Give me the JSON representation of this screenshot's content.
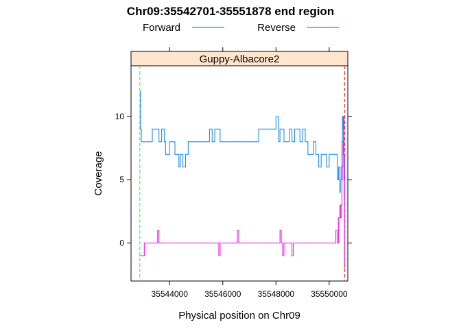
{
  "chart_data": {
    "type": "line",
    "title": "Chr09:35542701-35551878 end region",
    "xlabel": "Physical position on Chr09",
    "ylabel": "Coverage",
    "panel_label": "Guppy-Albacore2",
    "xlim": [
      35542550,
      35550700
    ],
    "ylim": [
      -3,
      14
    ],
    "x_ticks": [
      35544000,
      35546000,
      35548000,
      35550000
    ],
    "x_tick_labels": [
      "35544000",
      "35546000",
      "35548000",
      "35550000"
    ],
    "y_ticks": [
      0,
      5,
      10
    ],
    "y_tick_labels": [
      "0",
      "5",
      "10"
    ],
    "legend_position": "top",
    "region_lines": [
      {
        "x": 35542880,
        "color": "#55ee55"
      },
      {
        "x": 35550580,
        "color": "#ee3333"
      }
    ],
    "series": [
      {
        "name": "Forward",
        "color": "#1f8fe6",
        "x": [
          35542880,
          35542900,
          35542940,
          35543300,
          35543350,
          35543450,
          35543600,
          35543650,
          35543700,
          35543750,
          35543800,
          35543850,
          35544000,
          35544100,
          35544200,
          35544350,
          35544400,
          35544500,
          35544600,
          35544700,
          35544800,
          35545000,
          35545200,
          35545400,
          35545500,
          35545600,
          35545700,
          35545900,
          35546500,
          35547000,
          35547350,
          35547500,
          35547800,
          35547950,
          35548000,
          35548100,
          35548150,
          35548300,
          35548400,
          35548500,
          35548600,
          35548700,
          35548800,
          35548900,
          35549000,
          35549100,
          35549200,
          35549300,
          35549400,
          35549500,
          35549600,
          35549700,
          35549800,
          35549900,
          35550000,
          35550100,
          35550200,
          35550300,
          35550350,
          35550400,
          35550420,
          35550450,
          35550480,
          35550500,
          35550520,
          35550540,
          35550560,
          35550580
        ],
        "y": [
          12,
          9,
          8,
          8,
          9,
          9,
          8,
          8,
          9,
          9,
          8,
          7,
          8,
          8,
          7,
          6,
          7,
          6,
          7,
          8,
          8,
          8,
          8,
          8,
          9,
          8,
          9,
          8,
          8,
          8,
          9,
          9,
          9,
          9,
          10,
          8,
          9,
          8,
          8,
          9,
          8,
          9,
          9,
          8,
          9,
          8,
          7,
          7,
          8,
          7,
          6,
          7,
          7,
          6,
          7,
          7,
          7,
          5,
          6,
          4,
          5,
          6,
          8,
          10,
          9,
          7,
          5,
          3
        ]
      },
      {
        "name": "Reverse",
        "color": "#ee22ee",
        "x": [
          35542880,
          35542920,
          35543050,
          35543500,
          35543550,
          35543600,
          35545800,
          35545850,
          35545900,
          35546500,
          35546550,
          35546600,
          35548100,
          35548150,
          35548200,
          35548250,
          35548300,
          35548550,
          35548600,
          35548650,
          35550200,
          35550250,
          35550300,
          35550350,
          35550400,
          35550420,
          35550450,
          35550480,
          35550500,
          35550520,
          35550540,
          35550560,
          35550580
        ],
        "y": [
          -1,
          -1,
          0,
          0,
          1,
          0,
          0,
          -1,
          0,
          0,
          1,
          0,
          0,
          1,
          0,
          -1,
          0,
          0,
          -1,
          0,
          0,
          1,
          0,
          2,
          3,
          2,
          3,
          5,
          6,
          8,
          10,
          7,
          -2
        ]
      }
    ]
  }
}
